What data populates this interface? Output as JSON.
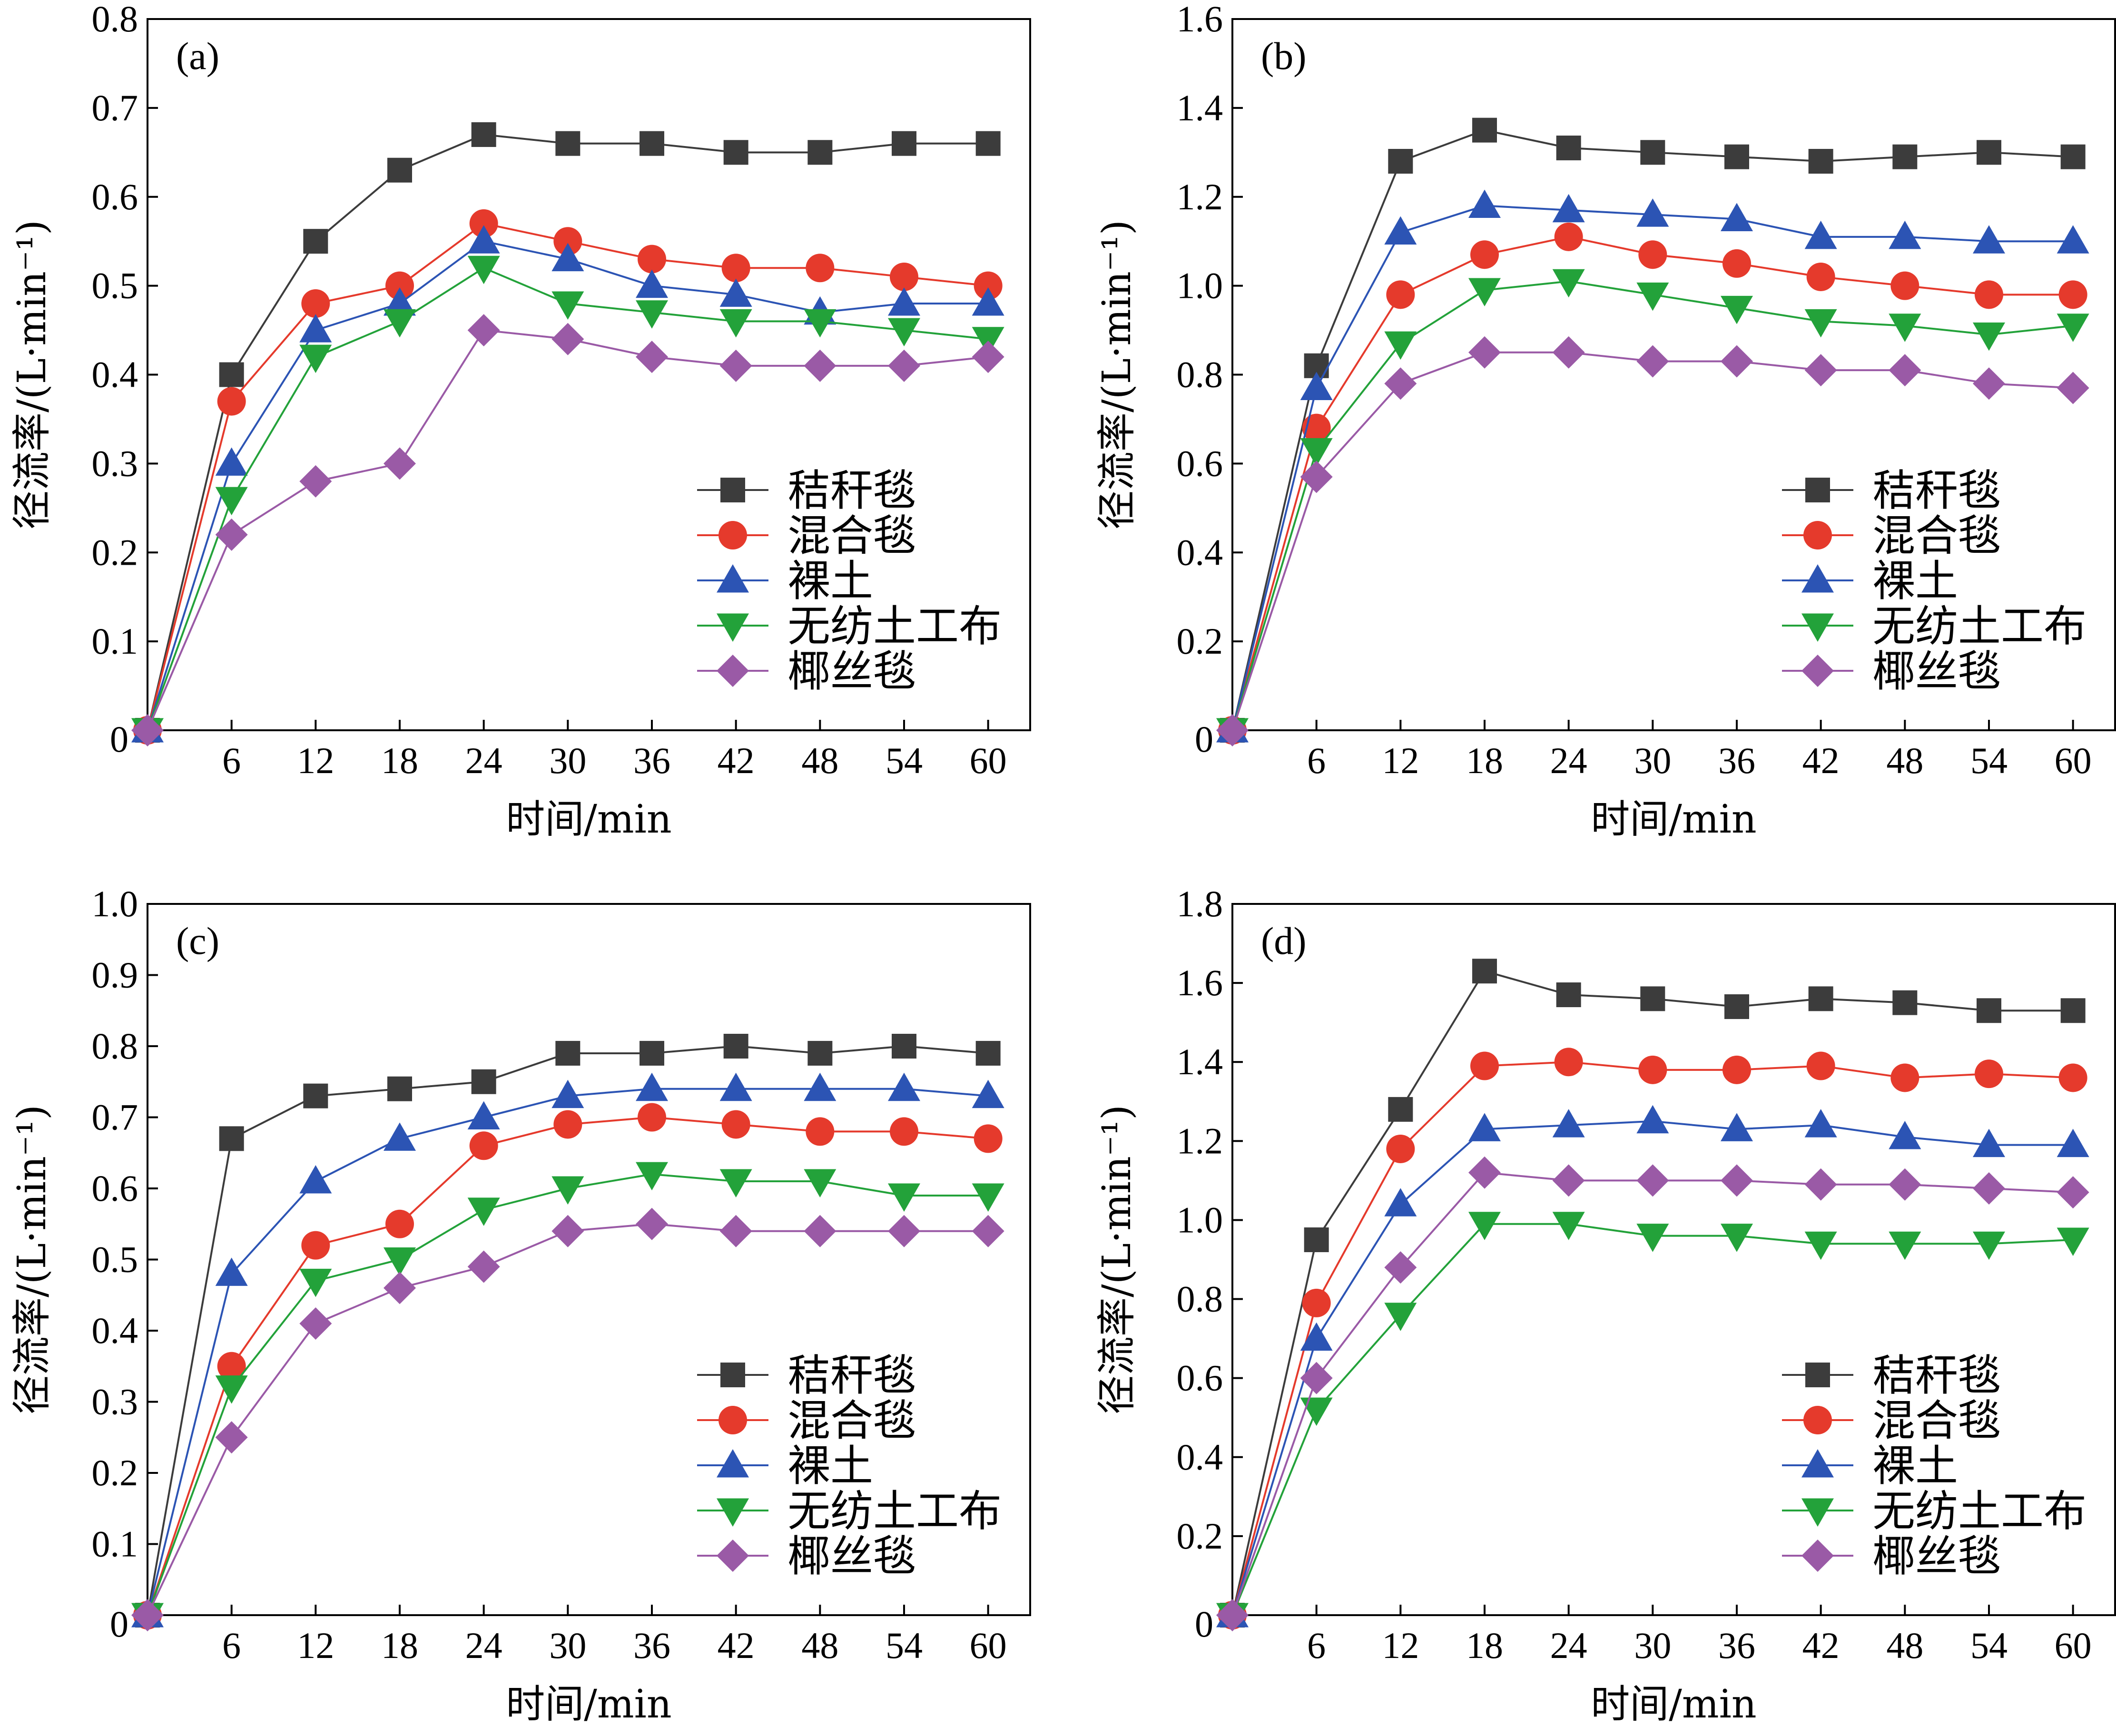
{
  "figure_title": "",
  "colors": {
    "秸秆毯": "#3c3c3c",
    "混合毯": "#e53a2c",
    "裸土": "#2c54b4",
    "无纺土工布": "#23a23a",
    "椰丝毯": "#9a5aa6"
  },
  "markers": {
    "秸秆毯": "square",
    "混合毯": "circle",
    "裸土": "triangle-up",
    "无纺土工布": "triangle-down",
    "椰丝毯": "diamond"
  },
  "chart_data": [
    {
      "type": "line",
      "panel_label": "(a)",
      "xlabel": "时间/min",
      "ylabel": "径流率/(L·min⁻¹)",
      "x": [
        0,
        6,
        12,
        18,
        24,
        30,
        36,
        42,
        48,
        54,
        60
      ],
      "xticks": [
        "6",
        "12",
        "18",
        "24",
        "30",
        "36",
        "42",
        "48",
        "54",
        "60"
      ],
      "x_origin_label": "0",
      "ylim": [
        0,
        0.8
      ],
      "yticks": [
        "0.1",
        "0.2",
        "0.3",
        "0.4",
        "0.5",
        "0.6",
        "0.7",
        "0.8"
      ],
      "legend_position": "lower-right",
      "series": [
        {
          "name": "秸秆毯",
          "values": [
            0,
            0.4,
            0.55,
            0.63,
            0.67,
            0.66,
            0.66,
            0.65,
            0.65,
            0.66,
            0.66
          ]
        },
        {
          "name": "混合毯",
          "values": [
            0,
            0.37,
            0.48,
            0.5,
            0.57,
            0.55,
            0.53,
            0.52,
            0.52,
            0.51,
            0.5
          ]
        },
        {
          "name": "裸土",
          "values": [
            0,
            0.3,
            0.45,
            0.48,
            0.55,
            0.53,
            0.5,
            0.49,
            0.47,
            0.48,
            0.48
          ]
        },
        {
          "name": "无纺土工布",
          "values": [
            0,
            0.26,
            0.42,
            0.46,
            0.52,
            0.48,
            0.47,
            0.46,
            0.46,
            0.45,
            0.44
          ]
        },
        {
          "name": "椰丝毯",
          "values": [
            0,
            0.22,
            0.28,
            0.3,
            0.45,
            0.44,
            0.42,
            0.41,
            0.41,
            0.41,
            0.42
          ]
        }
      ]
    },
    {
      "type": "line",
      "panel_label": "(b)",
      "xlabel": "时间/min",
      "ylabel": "径流率/(L·min⁻¹)",
      "x": [
        0,
        6,
        12,
        18,
        24,
        30,
        36,
        42,
        48,
        54,
        60
      ],
      "xticks": [
        "6",
        "12",
        "18",
        "24",
        "30",
        "36",
        "42",
        "48",
        "54",
        "60"
      ],
      "x_origin_label": "0",
      "ylim": [
        0,
        1.6
      ],
      "yticks": [
        "0.2",
        "0.4",
        "0.6",
        "0.8",
        "1.0",
        "1.2",
        "1.4",
        "1.6"
      ],
      "legend_position": "lower-right",
      "series": [
        {
          "name": "秸秆毯",
          "values": [
            0,
            0.82,
            1.28,
            1.35,
            1.31,
            1.3,
            1.29,
            1.28,
            1.29,
            1.3,
            1.29
          ]
        },
        {
          "name": "混合毯",
          "values": [
            0,
            0.68,
            0.98,
            1.07,
            1.11,
            1.07,
            1.05,
            1.02,
            1.0,
            0.98,
            0.98
          ]
        },
        {
          "name": "裸土",
          "values": [
            0,
            0.77,
            1.12,
            1.18,
            1.17,
            1.16,
            1.15,
            1.11,
            1.11,
            1.1,
            1.1
          ]
        },
        {
          "name": "无纺土工布",
          "values": [
            0,
            0.63,
            0.87,
            0.99,
            1.01,
            0.98,
            0.95,
            0.92,
            0.91,
            0.89,
            0.91
          ]
        },
        {
          "name": "椰丝毯",
          "values": [
            0,
            0.57,
            0.78,
            0.85,
            0.85,
            0.83,
            0.83,
            0.81,
            0.81,
            0.78,
            0.77
          ]
        }
      ]
    },
    {
      "type": "line",
      "panel_label": "(c)",
      "xlabel": "时间/min",
      "ylabel": "径流率/(L·min⁻¹)",
      "x": [
        0,
        6,
        12,
        18,
        24,
        30,
        36,
        42,
        48,
        54,
        60
      ],
      "xticks": [
        "6",
        "12",
        "18",
        "24",
        "30",
        "36",
        "42",
        "48",
        "54",
        "60"
      ],
      "x_origin_label": "0",
      "ylim": [
        0,
        1.0
      ],
      "yticks": [
        "0.1",
        "0.2",
        "0.3",
        "0.4",
        "0.5",
        "0.6",
        "0.7",
        "0.8",
        "0.9",
        "1.0"
      ],
      "legend_position": "lower-right",
      "series": [
        {
          "name": "秸秆毯",
          "values": [
            0,
            0.67,
            0.73,
            0.74,
            0.75,
            0.79,
            0.79,
            0.8,
            0.79,
            0.8,
            0.79
          ]
        },
        {
          "name": "混合毯",
          "values": [
            0,
            0.35,
            0.52,
            0.55,
            0.66,
            0.69,
            0.7,
            0.69,
            0.68,
            0.68,
            0.67
          ]
        },
        {
          "name": "裸土",
          "values": [
            0,
            0.48,
            0.61,
            0.67,
            0.7,
            0.73,
            0.74,
            0.74,
            0.74,
            0.74,
            0.73
          ]
        },
        {
          "name": "无纺土工布",
          "values": [
            0,
            0.32,
            0.47,
            0.5,
            0.57,
            0.6,
            0.62,
            0.61,
            0.61,
            0.59,
            0.59
          ]
        },
        {
          "name": "椰丝毯",
          "values": [
            0,
            0.25,
            0.41,
            0.46,
            0.49,
            0.54,
            0.55,
            0.54,
            0.54,
            0.54,
            0.54
          ]
        }
      ]
    },
    {
      "type": "line",
      "panel_label": "(d)",
      "xlabel": "时间/min",
      "ylabel": "径流率/(L·min⁻¹)",
      "x": [
        0,
        6,
        12,
        18,
        24,
        30,
        36,
        42,
        48,
        54,
        60
      ],
      "xticks": [
        "6",
        "12",
        "18",
        "24",
        "30",
        "36",
        "42",
        "48",
        "54",
        "60"
      ],
      "x_origin_label": "0",
      "ylim": [
        0,
        1.8
      ],
      "yticks": [
        "0.2",
        "0.4",
        "0.6",
        "0.8",
        "1.0",
        "1.2",
        "1.4",
        "1.6",
        "1.8"
      ],
      "legend_position": "lower-right",
      "series": [
        {
          "name": "秸秆毯",
          "values": [
            0,
            0.95,
            1.28,
            1.63,
            1.57,
            1.56,
            1.54,
            1.56,
            1.55,
            1.53,
            1.53
          ]
        },
        {
          "name": "混合毯",
          "values": [
            0,
            0.79,
            1.18,
            1.39,
            1.4,
            1.38,
            1.38,
            1.39,
            1.36,
            1.37,
            1.36
          ]
        },
        {
          "name": "裸土",
          "values": [
            0,
            0.7,
            1.04,
            1.23,
            1.24,
            1.25,
            1.23,
            1.24,
            1.21,
            1.19,
            1.19
          ]
        },
        {
          "name": "无纺土工布",
          "values": [
            0,
            0.52,
            0.76,
            0.99,
            0.99,
            0.96,
            0.96,
            0.94,
            0.94,
            0.94,
            0.95
          ]
        },
        {
          "name": "椰丝毯",
          "values": [
            0,
            0.6,
            0.88,
            1.12,
            1.1,
            1.1,
            1.1,
            1.09,
            1.09,
            1.08,
            1.07
          ]
        }
      ]
    }
  ]
}
